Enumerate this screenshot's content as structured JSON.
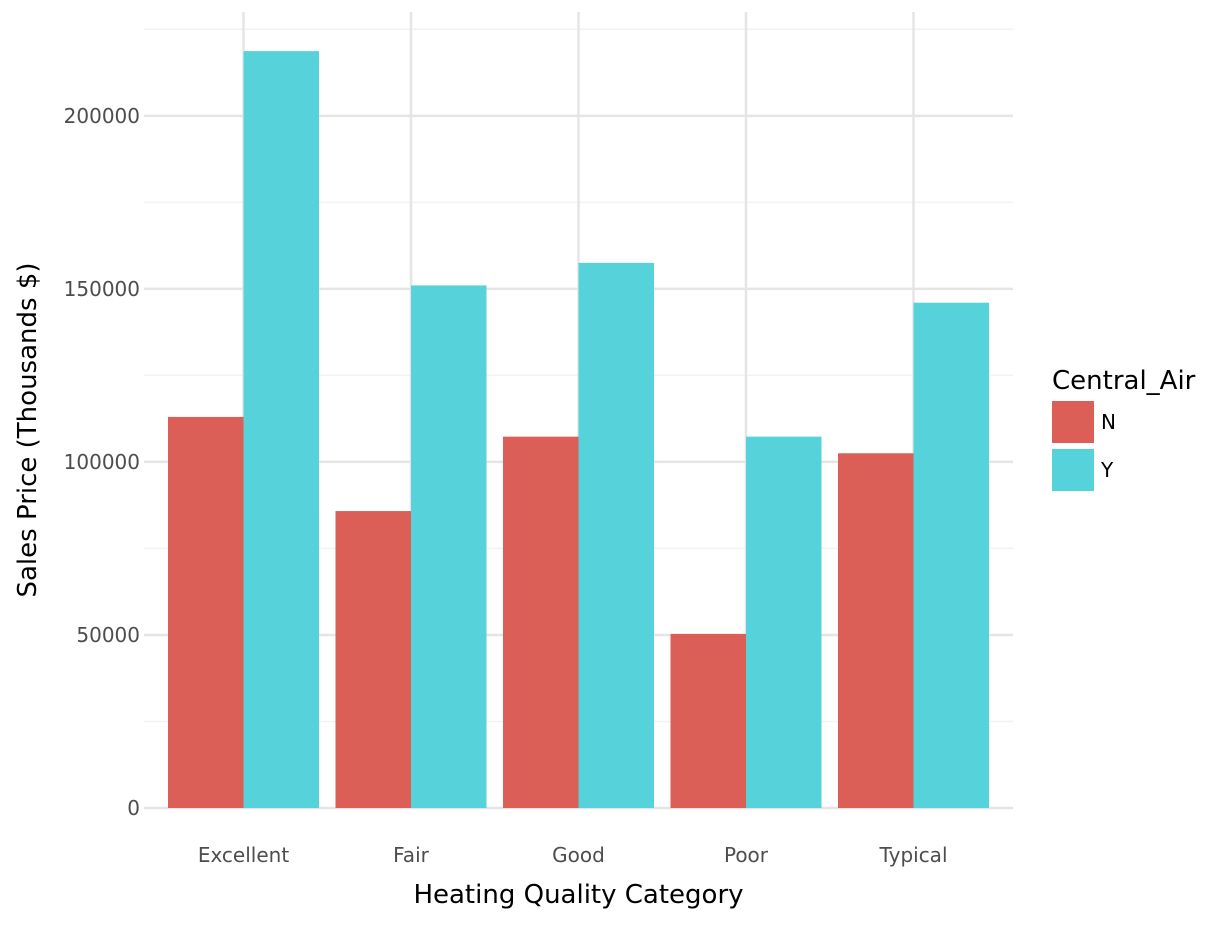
{
  "chart_data": {
    "type": "bar",
    "categories": [
      "Excellent",
      "Fair",
      "Good",
      "Poor",
      "Typical"
    ],
    "series": [
      {
        "name": "N",
        "color": "#dc5f57",
        "values": [
          113000,
          85800,
          107300,
          50300,
          102500
        ]
      },
      {
        "name": "Y",
        "color": "#55d2da",
        "values": [
          218700,
          151000,
          157500,
          107300,
          146000
        ]
      }
    ],
    "title": "",
    "xlabel": "Heating Quality Category",
    "ylabel": "Sales Price (Thousands $)",
    "ylim": [
      0,
      230000
    ],
    "yticks": [
      0,
      50000,
      100000,
      150000,
      200000
    ],
    "ytick_labels": [
      "0",
      "50000",
      "100000",
      "150000",
      "200000"
    ],
    "grid": true,
    "legend": {
      "title": "Central_Air",
      "placement": "right"
    }
  }
}
